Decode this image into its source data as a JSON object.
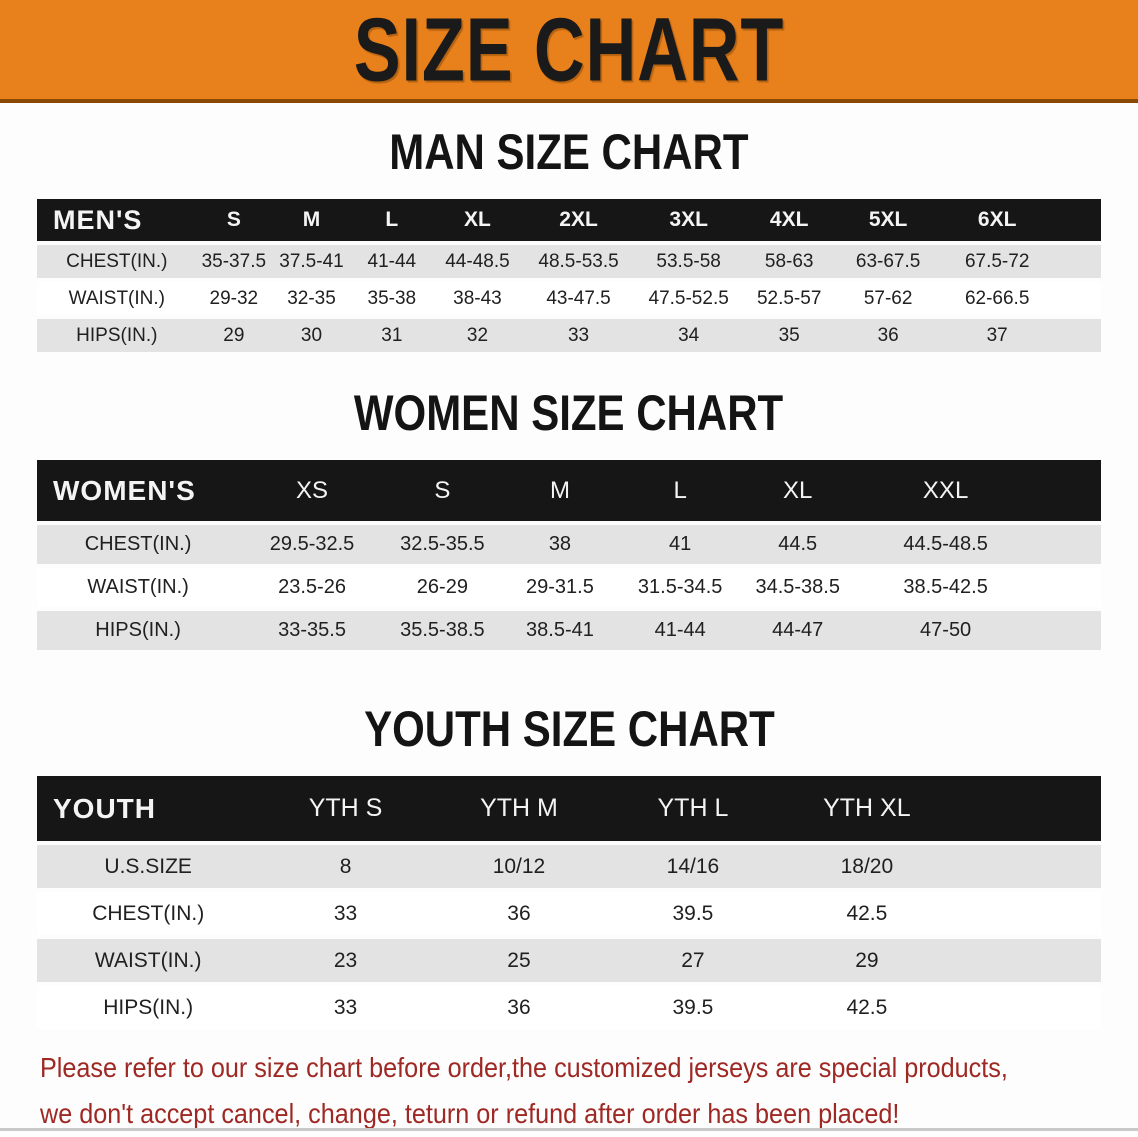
{
  "banner": {
    "title": "SIZE CHART"
  },
  "colors": {
    "banner_orange": "#E8811C",
    "banner_border": "#8a4a05",
    "header_black": "#161616",
    "row_gray": "#E3E3E3",
    "disclaimer_red": "#9E2823"
  },
  "chart_data": [
    {
      "type": "table",
      "title": "MAN SIZE CHART",
      "columns": [
        "MEN'S",
        "S",
        "M",
        "L",
        "XL",
        "2XL",
        "3XL",
        "4XL",
        "5XL",
        "6XL"
      ],
      "rows": [
        [
          "CHEST(IN.)",
          "35-37.5",
          "37.5-41",
          "41-44",
          "44-48.5",
          "48.5-53.5",
          "53.5-58",
          "58-63",
          "63-67.5",
          "67.5-72"
        ],
        [
          "WAIST(IN.)",
          "29-32",
          "32-35",
          "35-38",
          "38-43",
          "43-47.5",
          "47.5-52.5",
          "52.5-57",
          "57-62",
          "62-66.5"
        ],
        [
          "HIPS(IN.)",
          "29",
          "30",
          "31",
          "32",
          "33",
          "34",
          "35",
          "36",
          "37"
        ]
      ]
    },
    {
      "type": "table",
      "title": "WOMEN SIZE CHART",
      "columns": [
        "WOMEN'S",
        "XS",
        "S",
        "M",
        "L",
        "XL",
        "XXL"
      ],
      "rows": [
        [
          "CHEST(IN.)",
          "29.5-32.5",
          "32.5-35.5",
          "38",
          "41",
          "44.5",
          "44.5-48.5"
        ],
        [
          "WAIST(IN.)",
          "23.5-26",
          "26-29",
          "29-31.5",
          "31.5-34.5",
          "34.5-38.5",
          "38.5-42.5"
        ],
        [
          "HIPS(IN.)",
          "33-35.5",
          "35.5-38.5",
          "38.5-41",
          "41-44",
          "44-47",
          "47-50"
        ]
      ]
    },
    {
      "type": "table",
      "title": "YOUTH SIZE CHART",
      "columns": [
        "YOUTH",
        "YTH S",
        "YTH M",
        "YTH L",
        "YTH XL"
      ],
      "rows": [
        [
          "U.S.SIZE",
          "8",
          "10/12",
          "14/16",
          "18/20"
        ],
        [
          "CHEST(IN.)",
          "33",
          "36",
          "39.5",
          "42.5"
        ],
        [
          "WAIST(IN.)",
          "23",
          "25",
          "27",
          "29"
        ],
        [
          "HIPS(IN.)",
          "33",
          "36",
          "39.5",
          "42.5"
        ]
      ]
    }
  ],
  "disclaimer": {
    "line1": "Please refer to our size chart before order,the customized jerseys are special products,",
    "line2": "we don't accept cancel, change, teturn or refund after order has been placed!"
  }
}
